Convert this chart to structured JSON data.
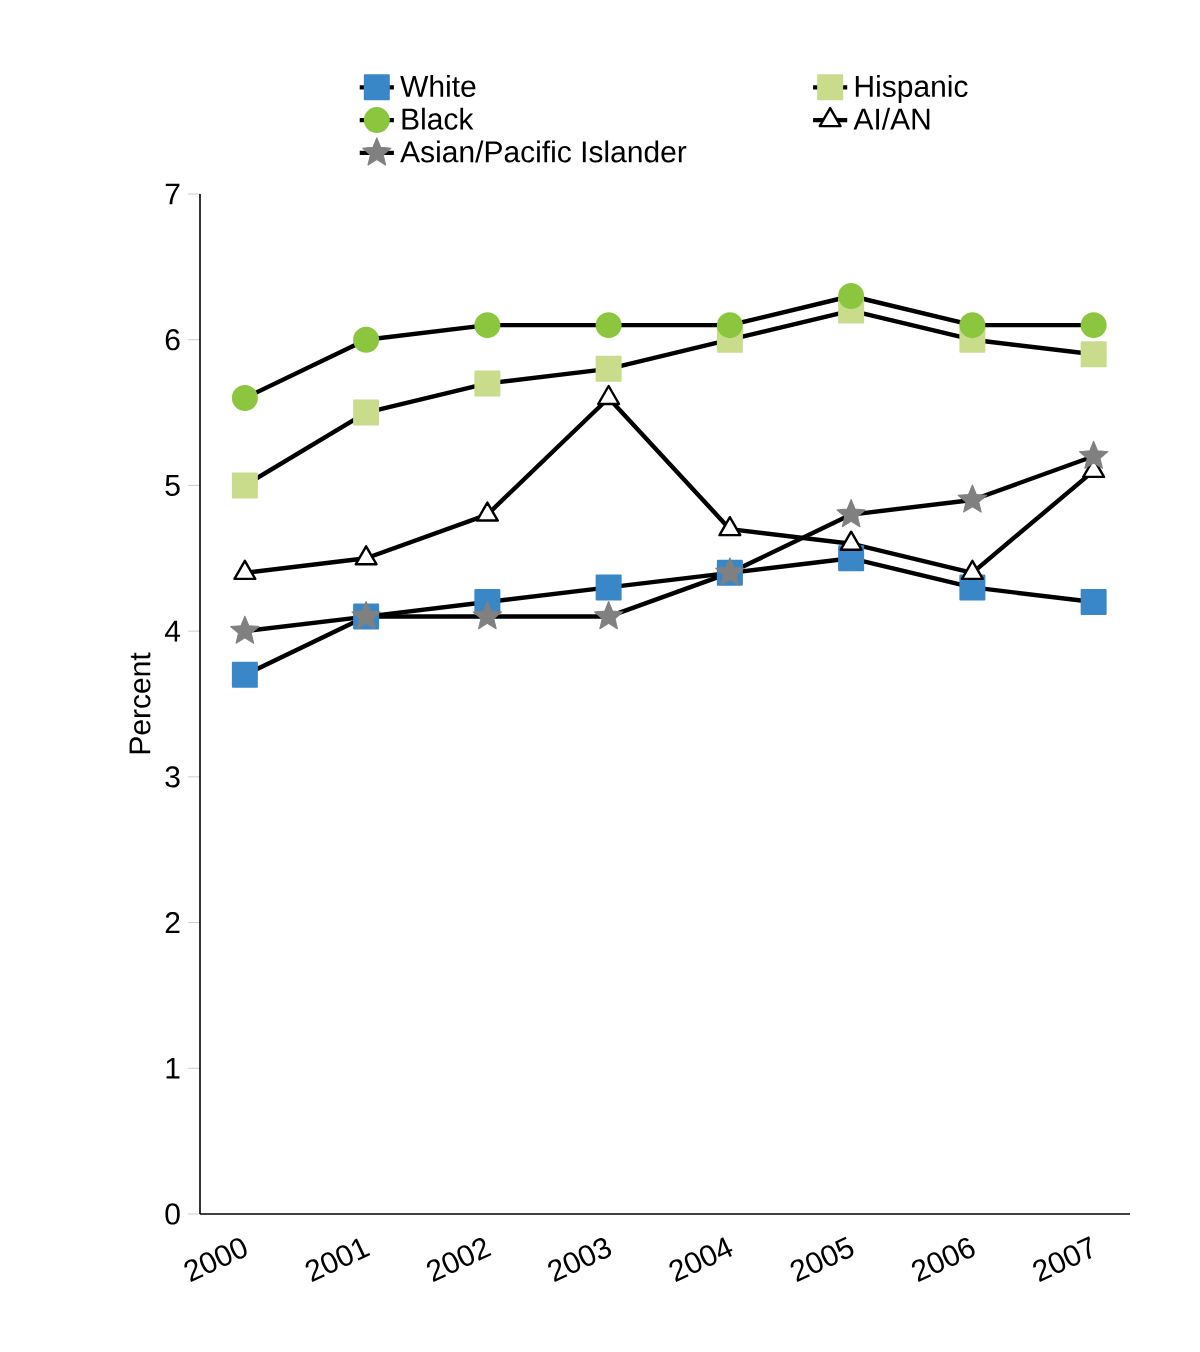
{
  "chart_data": {
    "type": "line",
    "ylabel": "Percent",
    "categories": [
      "2000",
      "2001",
      "2002",
      "2003",
      "2004",
      "2005",
      "2006",
      "2007"
    ],
    "series": [
      {
        "name": "White",
        "color": "#3a87c8",
        "marker": "square",
        "values": [
          3.7,
          4.1,
          4.2,
          4.3,
          4.4,
          4.5,
          4.3,
          4.2
        ]
      },
      {
        "name": "Hispanic",
        "color": "#c8dc8c",
        "marker": "square",
        "values": [
          5.0,
          5.5,
          5.7,
          5.8,
          6.0,
          6.2,
          6.0,
          5.9
        ]
      },
      {
        "name": "Black",
        "color": "#8cc63f",
        "marker": "circle",
        "values": [
          5.6,
          6.0,
          6.1,
          6.1,
          6.1,
          6.3,
          6.1,
          6.1
        ]
      },
      {
        "name": "AI/AN",
        "color": "#000000",
        "marker": "triangle",
        "values": [
          4.4,
          4.5,
          4.8,
          5.6,
          4.7,
          4.6,
          4.4,
          5.1
        ]
      },
      {
        "name": "Asian/Pacific Islander",
        "color": "#808080",
        "marker": "star",
        "values": [
          4.0,
          4.1,
          4.1,
          4.1,
          4.4,
          4.8,
          4.9,
          5.2
        ]
      }
    ],
    "ylim": [
      0,
      7
    ],
    "yticks": [
      0,
      1,
      2,
      3,
      4,
      5,
      6,
      7
    ],
    "grid": false,
    "legend": "top",
    "line_style": "solid"
  }
}
